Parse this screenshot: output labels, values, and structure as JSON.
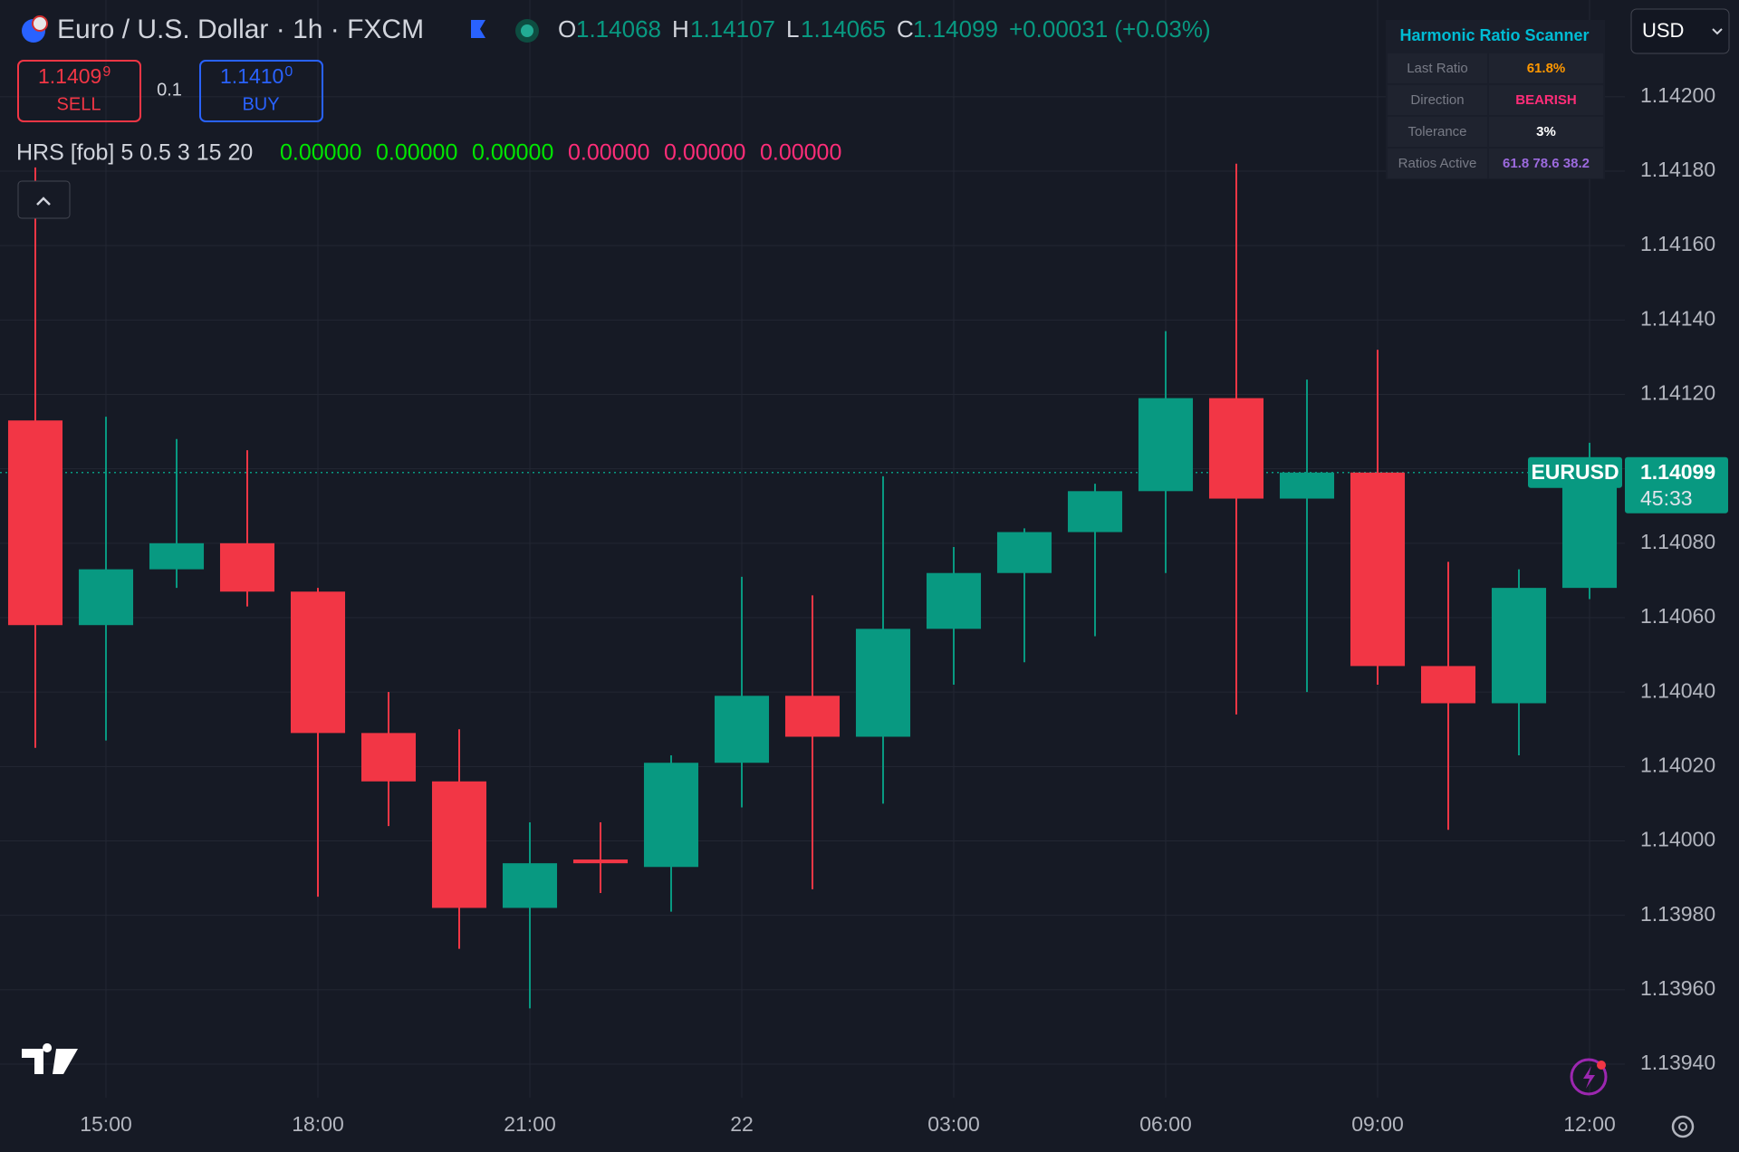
{
  "header": {
    "title": "Euro / U.S. Dollar · 1h · FXCM",
    "o_label": "O",
    "open": 1.14068,
    "h_label": "H",
    "high": 1.14107,
    "l_label": "L",
    "low": 1.14065,
    "c_label": "C",
    "close": 1.14099,
    "change": "+0.00031 (+0.03%)",
    "sell": {
      "price": "1.1409",
      "pip": "9",
      "label": "SELL"
    },
    "lot": "0.1",
    "buy": {
      "price": "1.1410",
      "pip": "0",
      "label": "BUY"
    },
    "indicator": {
      "name": "HRS [fob] 5 0.5 3 15 20",
      "values": [
        "0.00000",
        "0.00000",
        "0.00000",
        "0.00000",
        "0.00000",
        "0.00000"
      ]
    },
    "currency": "USD"
  },
  "scanner": {
    "title": "Harmonic Ratio Scanner",
    "rows": [
      [
        "Last Ratio",
        "61.8%"
      ],
      [
        "Direction",
        "BEARISH"
      ],
      [
        "Tolerance",
        "3%"
      ],
      [
        "Ratios Active",
        "61.8 78.6 38.2"
      ]
    ]
  },
  "chart_data": {
    "type": "candlestick",
    "categories": [
      null,
      "15:00",
      null,
      null,
      "18:00",
      null,
      null,
      "21:00",
      null,
      null,
      "22",
      null,
      null,
      "03:00",
      null,
      null,
      "06:00",
      null,
      null,
      "09:00",
      null,
      null,
      "12:00"
    ],
    "open": [
      1.14113,
      1.14058,
      1.14073,
      1.1408,
      1.14067,
      1.14029,
      1.14016,
      1.13982,
      1.13995,
      1.13993,
      1.14021,
      1.14039,
      1.14028,
      1.14057,
      1.14072,
      1.14083,
      1.14094,
      1.14119,
      1.14092,
      1.14099,
      1.14047,
      1.14037,
      1.14068
    ],
    "high": [
      1.14181,
      1.14114,
      1.14108,
      1.14105,
      1.14068,
      1.1404,
      1.1403,
      1.14005,
      1.14005,
      1.14023,
      1.14071,
      1.14066,
      1.14098,
      1.14079,
      1.14084,
      1.14096,
      1.14137,
      1.14182,
      1.14124,
      1.14132,
      1.14075,
      1.14073,
      1.14107
    ],
    "low": [
      1.14025,
      1.14027,
      1.14068,
      1.14063,
      1.13985,
      1.14004,
      1.13971,
      1.13955,
      1.13986,
      1.13981,
      1.14009,
      1.13987,
      1.1401,
      1.14042,
      1.14048,
      1.14055,
      1.14072,
      1.14034,
      1.1404,
      1.14042,
      1.14003,
      1.14023,
      1.14065
    ],
    "close": [
      1.14058,
      1.14073,
      1.1408,
      1.14067,
      1.14029,
      1.14016,
      1.13982,
      1.13994,
      1.13994,
      1.14021,
      1.14039,
      1.14028,
      1.14057,
      1.14072,
      1.14083,
      1.14094,
      1.14119,
      1.14092,
      1.14099,
      1.14047,
      1.14037,
      1.14068,
      1.14099
    ],
    "up_color": "#089981",
    "down_color": "#f23645",
    "ylim": [
      1.13931,
      1.14226
    ],
    "yticks": [
      {
        "value": 1.142,
        "label": "1.14200"
      },
      {
        "value": 1.1418,
        "label": "1.14180"
      },
      {
        "value": 1.1416,
        "label": "1.14160"
      },
      {
        "value": 1.1414,
        "label": "1.14140"
      },
      {
        "value": 1.1412,
        "label": "1.14120"
      },
      {
        "value": 1.141,
        "label": "1.14100"
      },
      {
        "value": 1.1408,
        "label": "1.14080"
      },
      {
        "value": 1.1406,
        "label": "1.14060"
      },
      {
        "value": 1.1404,
        "label": "1.14040"
      },
      {
        "value": 1.1402,
        "label": "1.14020"
      },
      {
        "value": 1.14,
        "label": "1.14000"
      },
      {
        "value": 1.1398,
        "label": "1.13980"
      },
      {
        "value": 1.1396,
        "label": "1.13960"
      },
      {
        "value": 1.1394,
        "label": "1.13940"
      }
    ],
    "grid": true,
    "symbol": "EURUSD",
    "last_price": 1.14099,
    "countdown": "45:33"
  }
}
